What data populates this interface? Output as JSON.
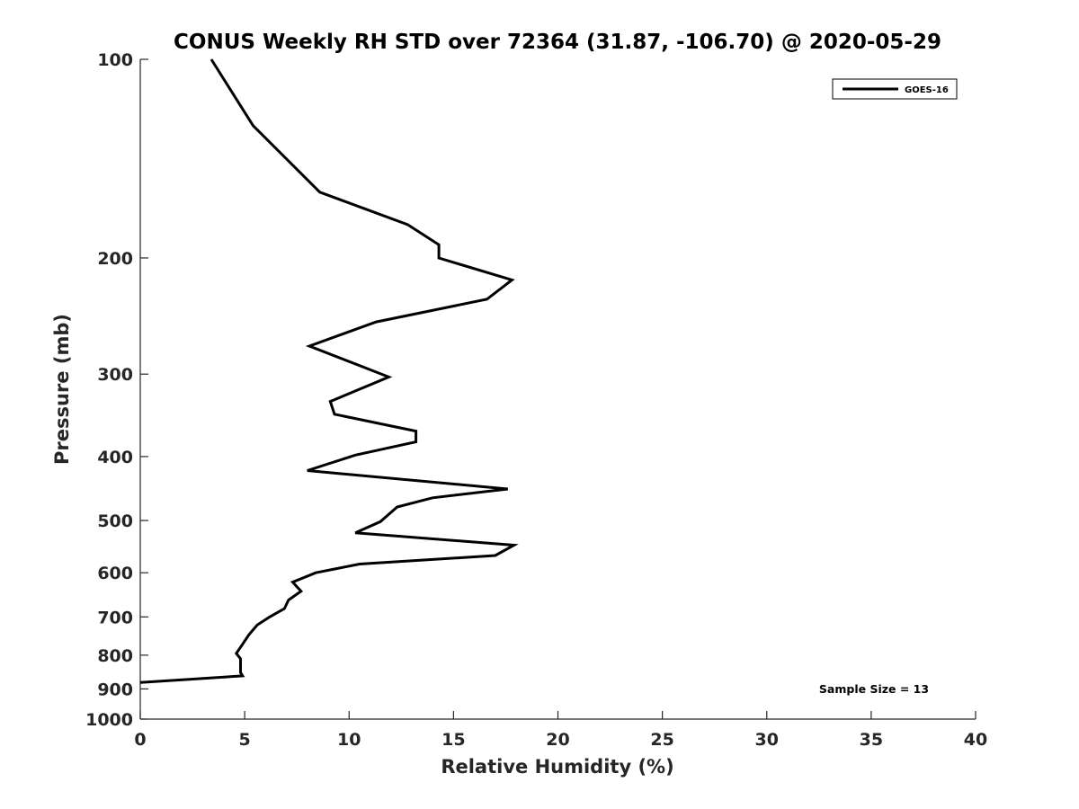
{
  "chart_data": {
    "type": "line",
    "title": "CONUS Weekly RH STD over 72364 (31.87, -106.70) @ 2020-05-29",
    "xlabel": "Relative Humidity (%)",
    "ylabel": "Pressure (mb)",
    "xlim": [
      0,
      40
    ],
    "ylim": [
      100,
      1000
    ],
    "y_scale": "log",
    "y_reversed": true,
    "xticks": [
      0,
      5,
      10,
      15,
      20,
      25,
      30,
      35,
      40
    ],
    "yticks": [
      100,
      200,
      300,
      400,
      500,
      600,
      700,
      800,
      900,
      1000
    ],
    "legend_position": "top-right",
    "annotation": "Sample Size = 13",
    "series": [
      {
        "name": "GOES-16",
        "color": "#000000",
        "x": [
          3.4,
          5.4,
          8.6,
          12.8,
          14.3,
          14.3,
          14.3,
          17.8,
          16.6,
          11.3,
          8.1,
          11.9,
          9.1,
          9.3,
          13.2,
          13.2,
          10.3,
          8.0,
          17.6,
          14.0,
          12.3,
          11.5,
          10.3,
          17.9,
          17.0,
          10.5,
          8.4,
          7.3,
          7.7,
          7.1,
          6.9,
          6.2,
          5.6,
          5.2,
          4.9,
          4.6,
          4.8,
          4.8,
          4.9,
          0.0
        ],
        "y": [
          100,
          126,
          159,
          178,
          191,
          200,
          200,
          216,
          231,
          250,
          272,
          303,
          330,
          345,
          366,
          380,
          398,
          420,
          448,
          462,
          477,
          502,
          522,
          545,
          565,
          582,
          600,
          620,
          640,
          660,
          680,
          700,
          720,
          745,
          770,
          795,
          810,
          850,
          860,
          880
        ]
      }
    ]
  }
}
